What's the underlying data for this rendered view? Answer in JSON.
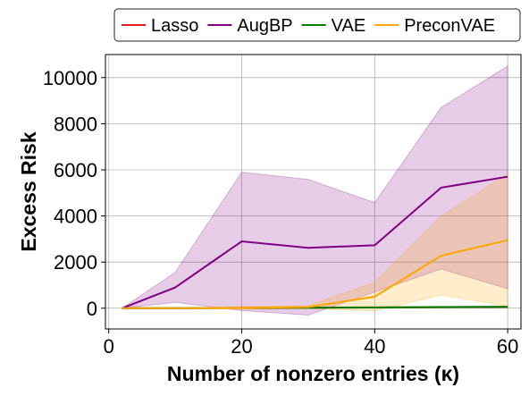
{
  "chart_data": {
    "type": "line",
    "xlabel": "Number of nonzero entries (κ)",
    "ylabel": "Excess Risk",
    "xlim": [
      -0.5,
      62
    ],
    "ylim": [
      -900,
      11000
    ],
    "xticks": [
      0,
      20,
      40,
      60
    ],
    "yticks": [
      0,
      2000,
      4000,
      6000,
      8000,
      10000
    ],
    "grid": true,
    "legend_position": "top (above plot, single row)",
    "x": [
      2,
      10,
      20,
      30,
      40,
      50,
      60
    ],
    "series": [
      {
        "name": "Lasso",
        "color": "#e41a1c",
        "values": [
          0,
          5,
          15,
          25,
          35,
          45,
          55
        ],
        "lower": [
          0,
          0,
          5,
          10,
          15,
          20,
          25
        ],
        "upper": [
          0,
          10,
          25,
          40,
          55,
          70,
          85
        ]
      },
      {
        "name": "AugBP",
        "color": "#800080",
        "values": [
          0,
          900,
          2900,
          2620,
          2730,
          5230,
          5700
        ],
        "lower": [
          0,
          250,
          -100,
          -300,
          700,
          1700,
          850
        ],
        "upper": [
          0,
          1550,
          5900,
          5580,
          4580,
          8700,
          10500
        ]
      },
      {
        "name": "VAE",
        "color": "#008000",
        "values": [
          0,
          5,
          10,
          20,
          30,
          50,
          60
        ],
        "lower": [
          0,
          0,
          0,
          5,
          10,
          20,
          30
        ],
        "upper": [
          0,
          10,
          20,
          35,
          50,
          80,
          90
        ]
      },
      {
        "name": "PreconVAE",
        "color": "#ffa500",
        "values": [
          0,
          0,
          10,
          50,
          500,
          2280,
          2950
        ],
        "lower": [
          0,
          0,
          -50,
          -10,
          -120,
          560,
          90
        ],
        "upper": [
          0,
          0,
          70,
          110,
          1120,
          4000,
          5820
        ]
      }
    ]
  }
}
